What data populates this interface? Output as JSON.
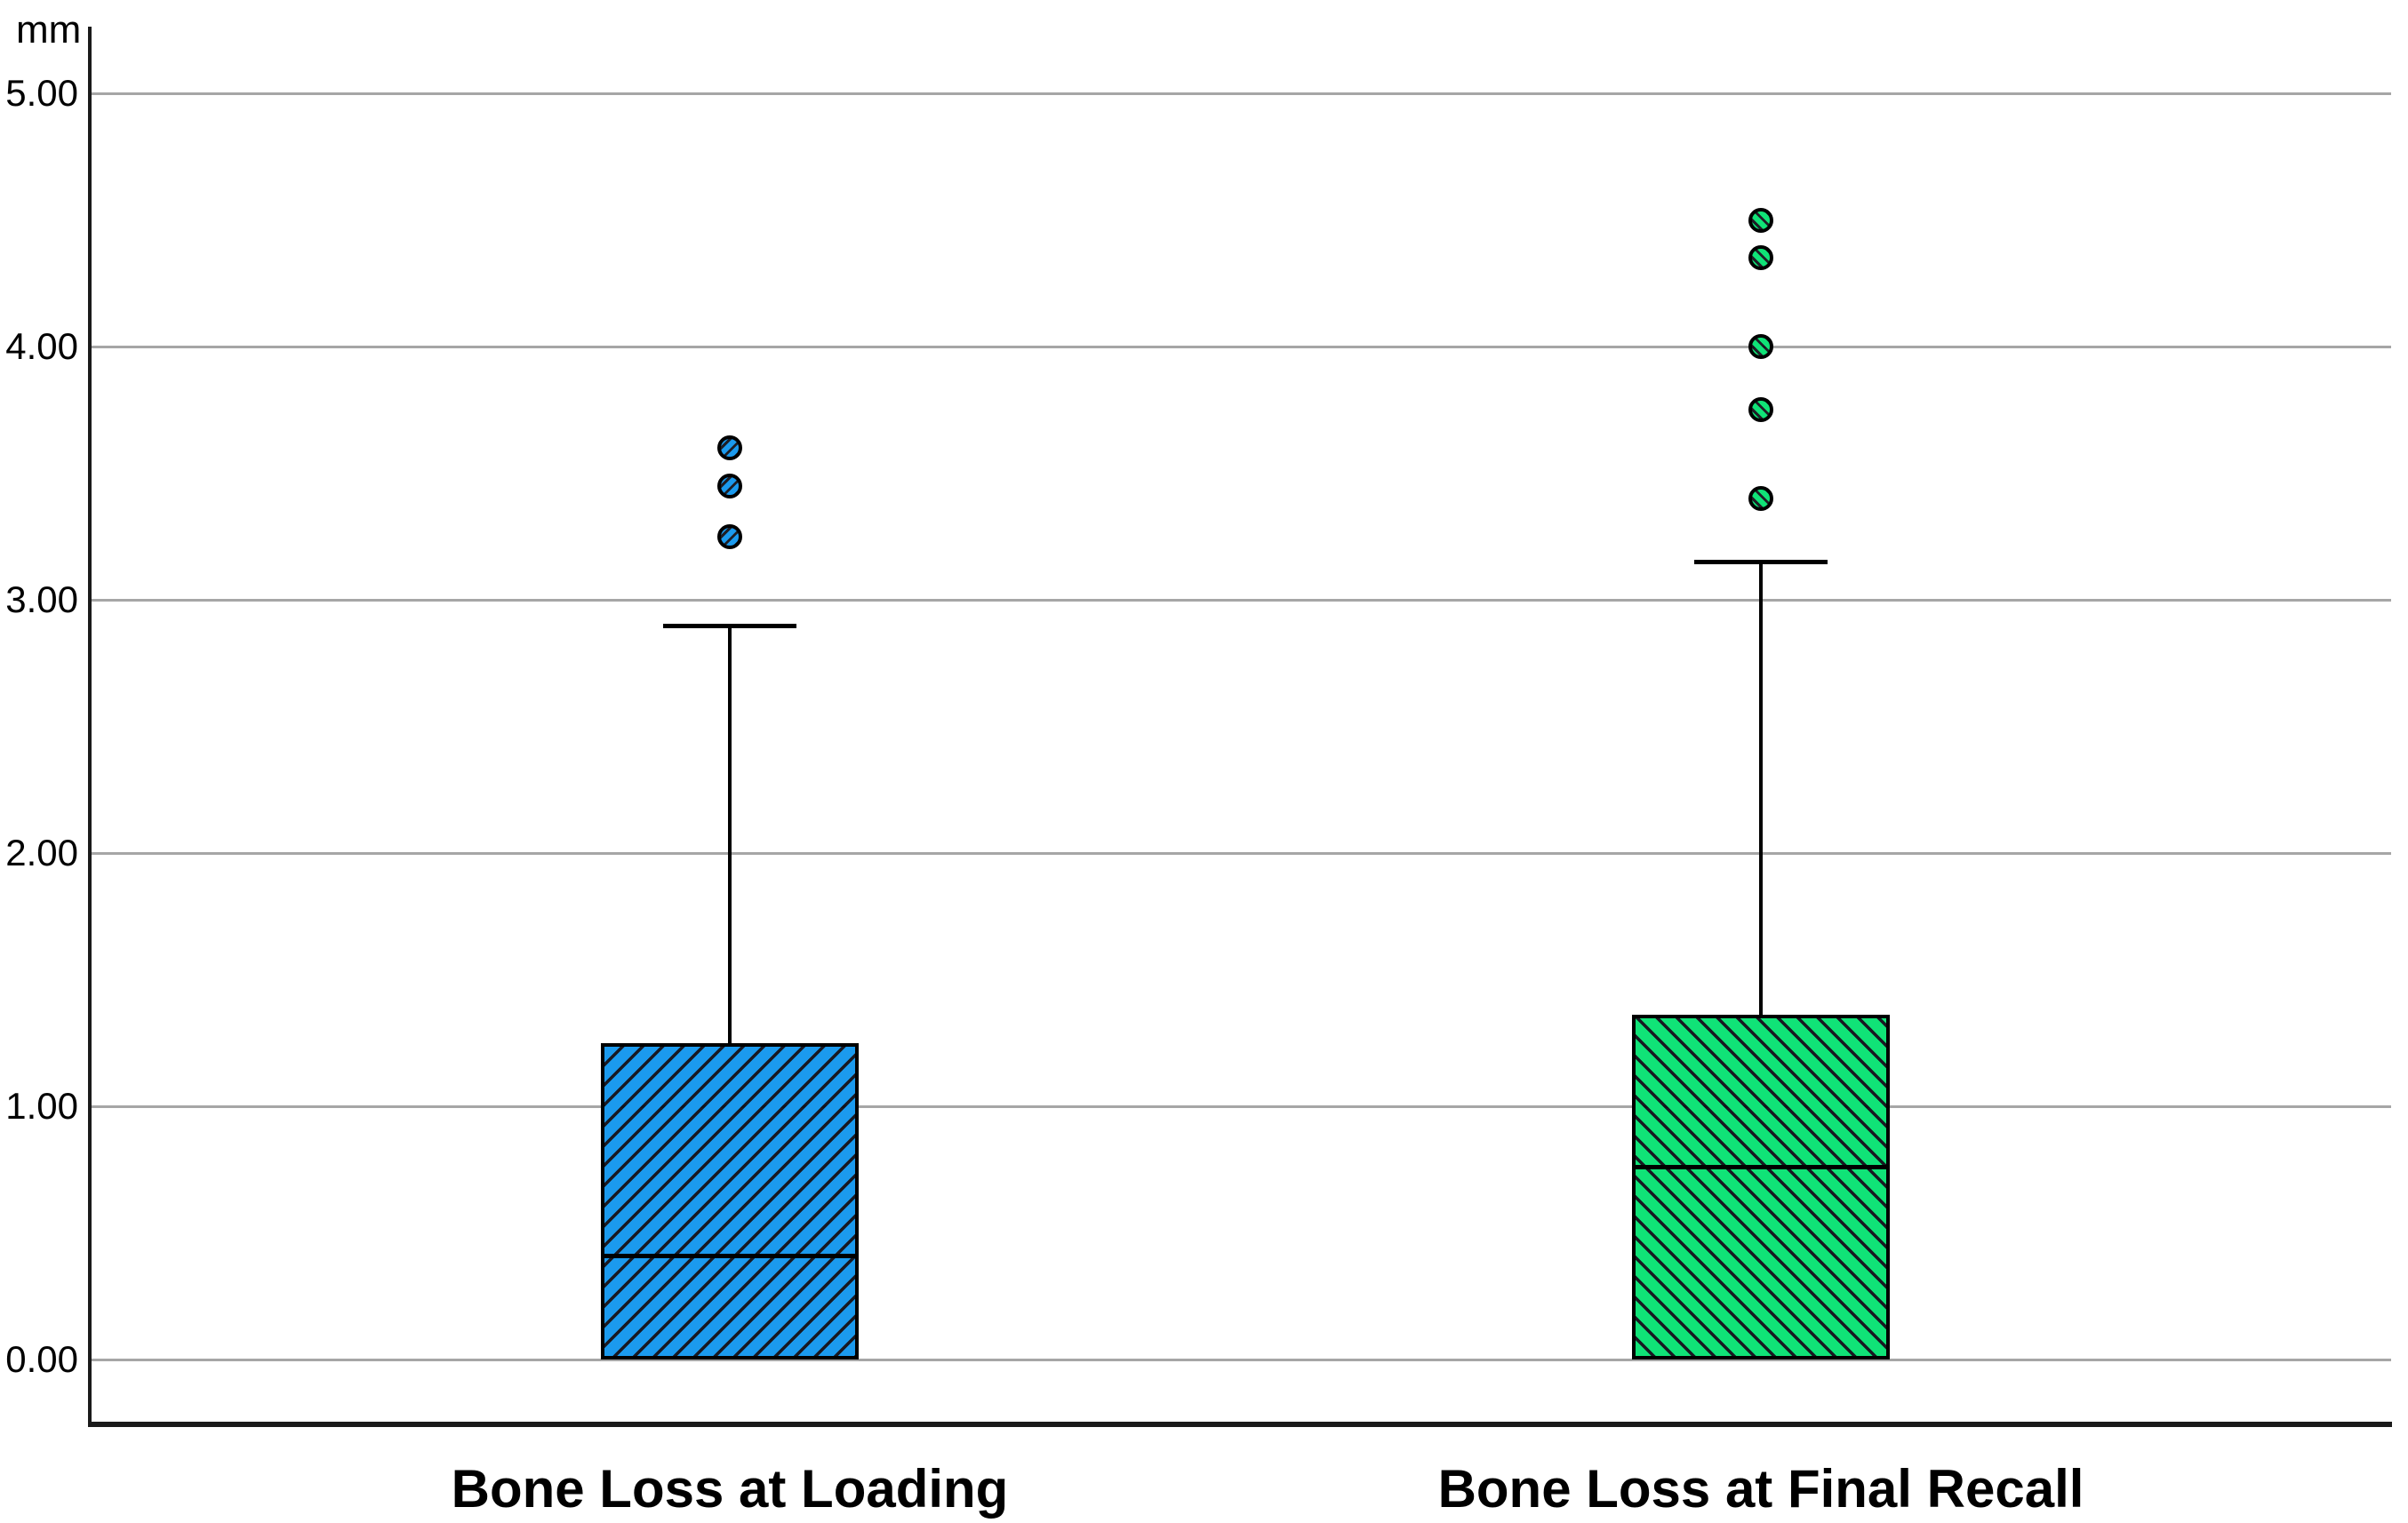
{
  "chart_data": {
    "type": "boxplot",
    "title": "",
    "ylabel": "mm",
    "xlabel": "",
    "ylim": [
      0,
      5
    ],
    "yticks": [
      5.0,
      4.0,
      3.0,
      2.0,
      1.0,
      0.0
    ],
    "tick_labels": [
      "5.00",
      "4.00",
      "3.00",
      "2.00",
      "1.00",
      "0.00"
    ],
    "grid": "horizontal",
    "legend": "none",
    "categories": [
      "Bone Loss at Loading",
      "Bone Loss at Final Recall"
    ],
    "series": [
      {
        "name": "Bone Loss at Loading",
        "color": "#1B9AEE",
        "hatch": "/",
        "q1": 0.0,
        "median": 0.41,
        "q3": 1.25,
        "whisker_low": 0.0,
        "whisker_high": 2.9,
        "outliers": [
          3.25,
          3.45,
          3.6
        ],
        "outlier_marker": "circle"
      },
      {
        "name": "Bone Loss at Final Recall",
        "color": "#10E377",
        "hatch": "\\",
        "q1": 0.0,
        "median": 0.76,
        "q3": 1.36,
        "whisker_low": 0.0,
        "whisker_high": 3.15,
        "outliers": [
          3.4,
          3.75,
          4.0,
          4.35,
          4.5
        ],
        "outlier_marker": "circle"
      }
    ]
  }
}
